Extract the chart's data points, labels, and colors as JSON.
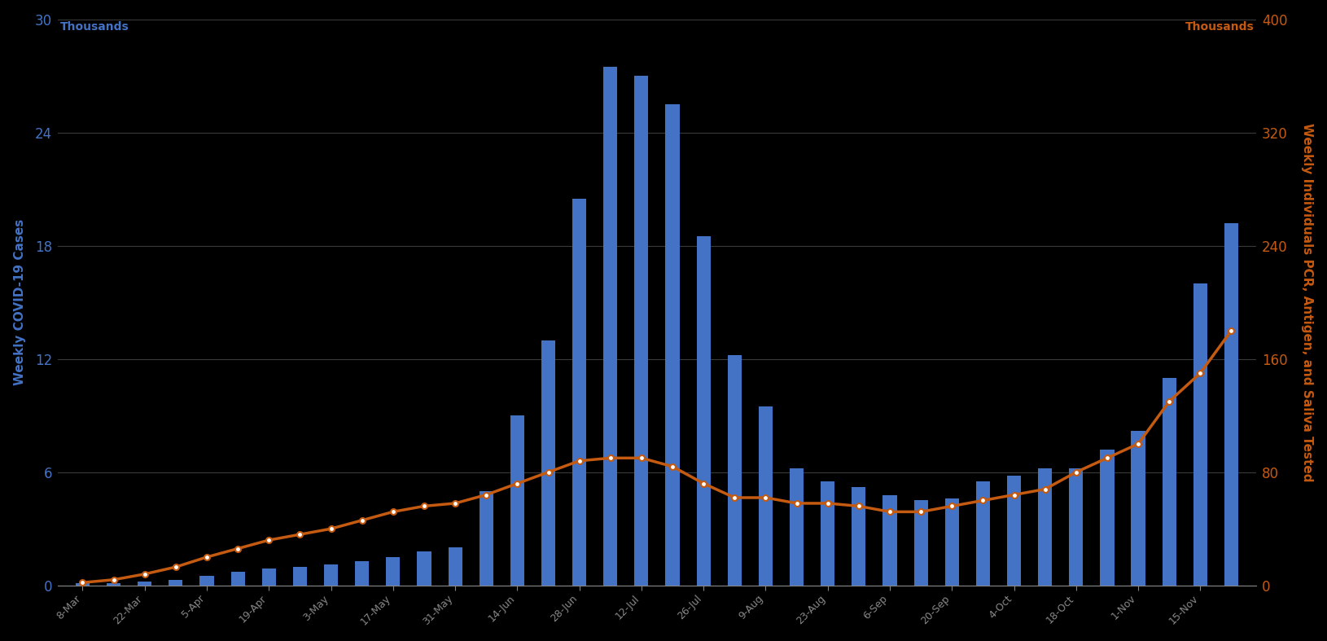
{
  "bar_color": "#4472C4",
  "line_color": "#C55A11",
  "marker_face": "#FFFFFF",
  "left_ylabel": "Weekly COVID-19 Cases",
  "right_ylabel": "Weekly Individuals PCR, Antigen, and Saliva Tested",
  "left_thousands": "Thousands",
  "right_thousands": "Thousands",
  "left_ylim": [
    0,
    30
  ],
  "right_ylim": [
    0,
    400
  ],
  "left_yticks": [
    0,
    6,
    12,
    18,
    24,
    30
  ],
  "right_yticks": [
    0,
    80,
    160,
    240,
    320,
    400
  ],
  "background_color": "#000000",
  "text_color_blue": "#4472C4",
  "text_color_orange": "#C55A11",
  "text_color_axis": "#888888",
  "grid_color": "#3a3a3a",
  "tick_labels": [
    "8-Mar",
    "22-Mar",
    "5-Apr",
    "19-Apr",
    "3-May",
    "17-May",
    "31-May",
    "14-Jun",
    "28-Jun",
    "12-Jul",
    "26-Jul",
    "9-Aug",
    "23-Aug",
    "6-Sep",
    "20-Sep",
    "4-Oct",
    "18-Oct",
    "1-Nov",
    "15-Nov"
  ],
  "tick_positions": [
    0,
    2,
    4,
    6,
    8,
    10,
    12,
    14,
    16,
    18,
    20,
    22,
    24,
    26,
    28,
    30,
    32,
    34,
    36
  ],
  "bar_values": [
    0.1,
    0.1,
    0.2,
    0.3,
    0.5,
    0.7,
    0.9,
    1.0,
    1.1,
    1.3,
    1.5,
    1.8,
    2.0,
    5.0,
    9.0,
    13.0,
    20.5,
    27.5,
    27.0,
    25.5,
    18.5,
    12.2,
    9.5,
    6.2,
    5.5,
    5.2,
    4.8,
    4.5,
    4.6,
    5.5,
    5.8,
    6.2,
    6.2,
    7.2,
    8.2,
    11.0,
    16.0,
    19.2
  ],
  "line_values": [
    2,
    4,
    8,
    13,
    20,
    26,
    32,
    36,
    40,
    46,
    52,
    56,
    58,
    64,
    72,
    80,
    88,
    90,
    90,
    84,
    72,
    62,
    62,
    58,
    58,
    56,
    52,
    52,
    56,
    60,
    64,
    68,
    80,
    90,
    100,
    130,
    150,
    180
  ]
}
